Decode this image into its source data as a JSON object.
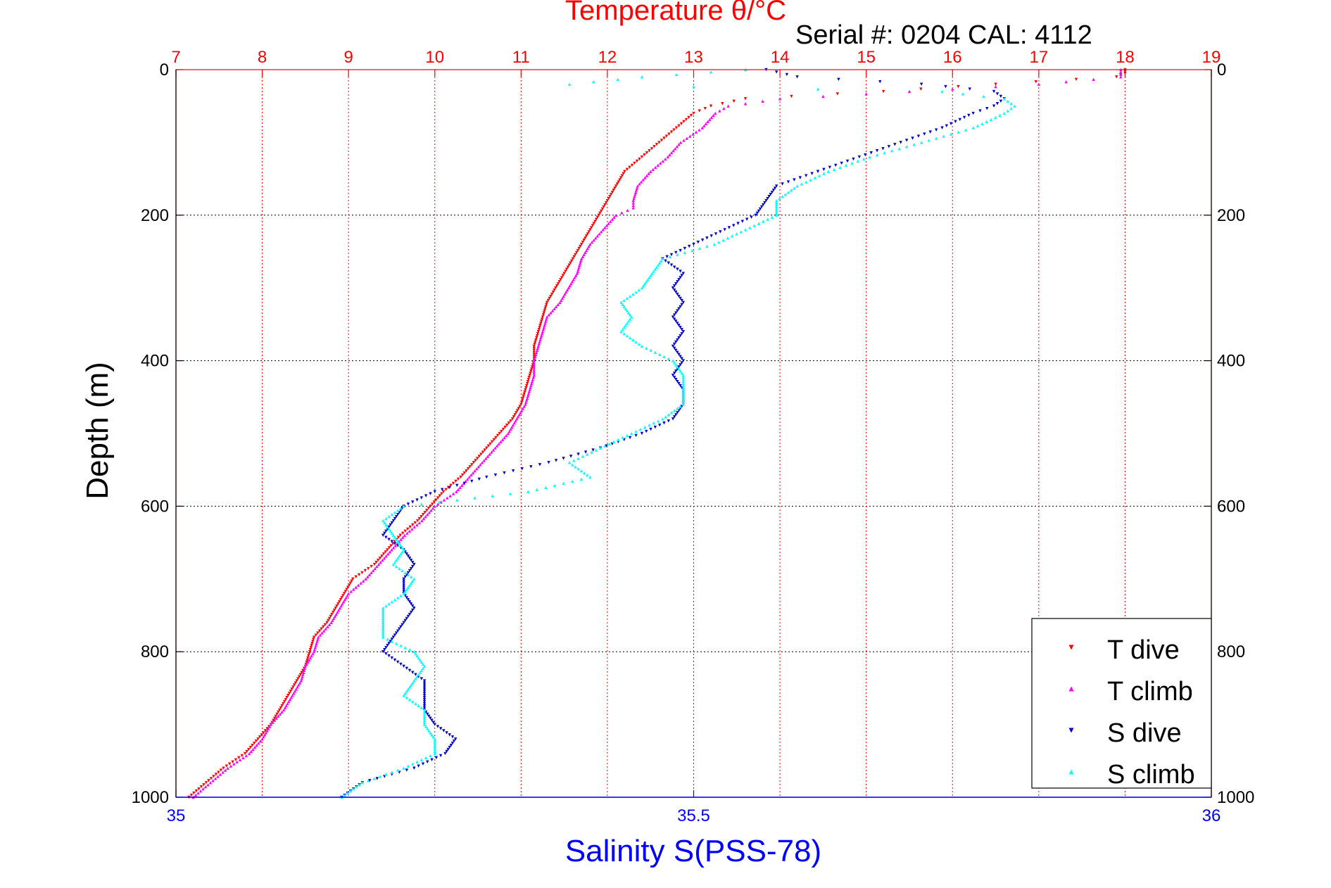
{
  "chart_data": {
    "type": "scatter",
    "title": "Temperature θ/°C",
    "subtitle": "Serial #: 0204  CAL: 4112",
    "ylabel": "Depth (m)",
    "xlabel_bottom": "Salinity S(PSS-78)",
    "xlabel_top": "Temperature θ/°C",
    "ylim": [
      0,
      1000
    ],
    "y_reversed": true,
    "xlim_top": [
      7,
      19
    ],
    "xlim_bottom": [
      35,
      36
    ],
    "yticks": [
      "0",
      "200",
      "400",
      "600",
      "800",
      "1000"
    ],
    "xticks_top": [
      "7",
      "8",
      "9",
      "10",
      "11",
      "12",
      "13",
      "14",
      "15",
      "16",
      "17",
      "18",
      "19"
    ],
    "xticks_bottom": [
      "35",
      "35.5",
      "36"
    ],
    "grid": true,
    "legend_position": "bottom-right",
    "colors": {
      "t_dive": "#ff0000",
      "t_climb": "#ff00ff",
      "s_dive": "#0000cc",
      "s_climb": "#00ffff",
      "temperature_axis": "#ff0000",
      "salinity_axis": "#0000ff"
    },
    "series": [
      {
        "name": "T dive",
        "axis": "temperature",
        "marker": "triangle-down",
        "depth": [
          0,
          5,
          10,
          20,
          30,
          40,
          50,
          60,
          80,
          100,
          120,
          140,
          160,
          180,
          200,
          220,
          240,
          260,
          280,
          300,
          320,
          340,
          360,
          380,
          400,
          420,
          440,
          460,
          480,
          500,
          520,
          540,
          560,
          580,
          600,
          620,
          640,
          660,
          680,
          700,
          720,
          740,
          760,
          780,
          800,
          820,
          840,
          860,
          880,
          900,
          920,
          940,
          960,
          980,
          1000
        ],
        "values": [
          18.0,
          18.0,
          17.9,
          16.5,
          15.2,
          13.6,
          13.2,
          13.0,
          12.8,
          12.6,
          12.4,
          12.2,
          12.1,
          12.0,
          11.9,
          11.8,
          11.7,
          11.6,
          11.5,
          11.4,
          11.3,
          11.25,
          11.2,
          11.15,
          11.15,
          11.1,
          11.05,
          11.0,
          10.9,
          10.75,
          10.6,
          10.45,
          10.3,
          10.1,
          9.95,
          9.8,
          9.6,
          9.45,
          9.3,
          9.05,
          8.95,
          8.85,
          8.75,
          8.6,
          8.55,
          8.5,
          8.4,
          8.3,
          8.2,
          8.1,
          7.95,
          7.8,
          7.55,
          7.35,
          7.15
        ]
      },
      {
        "name": "T climb",
        "axis": "temperature",
        "marker": "triangle-up",
        "depth": [
          0,
          10,
          20,
          30,
          40,
          50,
          60,
          80,
          100,
          120,
          140,
          160,
          180,
          190,
          200,
          220,
          240,
          260,
          280,
          300,
          320,
          340,
          360,
          380,
          400,
          420,
          440,
          460,
          480,
          500,
          520,
          540,
          560,
          580,
          600,
          620,
          640,
          660,
          680,
          700,
          720,
          740,
          760,
          780,
          800,
          820,
          840,
          860,
          880,
          900,
          920,
          940,
          960,
          980,
          1000
        ],
        "values": [
          17.95,
          17.95,
          17.0,
          15.5,
          14.0,
          13.4,
          13.25,
          13.1,
          12.85,
          12.7,
          12.5,
          12.35,
          12.3,
          12.3,
          12.1,
          11.95,
          11.8,
          11.7,
          11.65,
          11.55,
          11.45,
          11.3,
          11.25,
          11.2,
          11.15,
          11.15,
          11.1,
          11.05,
          10.95,
          10.85,
          10.7,
          10.55,
          10.4,
          10.25,
          10.0,
          9.85,
          9.65,
          9.5,
          9.35,
          9.2,
          9.0,
          8.9,
          8.8,
          8.65,
          8.6,
          8.5,
          8.45,
          8.35,
          8.25,
          8.1,
          8.0,
          7.85,
          7.6,
          7.4,
          7.2
        ]
      },
      {
        "name": "S dive",
        "axis": "salinity",
        "marker": "triangle-down",
        "depth": [
          0,
          10,
          20,
          30,
          40,
          50,
          60,
          80,
          100,
          120,
          140,
          160,
          180,
          200,
          220,
          240,
          260,
          280,
          300,
          320,
          340,
          360,
          380,
          400,
          420,
          440,
          460,
          480,
          500,
          520,
          540,
          560,
          580,
          600,
          620,
          640,
          660,
          680,
          700,
          720,
          740,
          760,
          780,
          800,
          820,
          840,
          860,
          880,
          900,
          920,
          940,
          960,
          980,
          1000
        ],
        "values": [
          35.57,
          35.6,
          35.72,
          35.79,
          35.8,
          35.79,
          35.77,
          35.74,
          35.7,
          35.66,
          35.62,
          35.58,
          35.57,
          35.56,
          35.53,
          35.5,
          35.47,
          35.49,
          35.48,
          35.49,
          35.48,
          35.49,
          35.48,
          35.49,
          35.48,
          35.49,
          35.49,
          35.48,
          35.45,
          35.41,
          35.36,
          35.3,
          35.25,
          35.22,
          35.21,
          35.2,
          35.22,
          35.23,
          35.22,
          35.22,
          35.23,
          35.22,
          35.21,
          35.2,
          35.22,
          35.24,
          35.24,
          35.24,
          35.25,
          35.27,
          35.26,
          35.23,
          35.18,
          35.16
        ]
      },
      {
        "name": "S climb",
        "axis": "salinity",
        "marker": "triangle-up",
        "depth": [
          0,
          10,
          20,
          30,
          40,
          50,
          60,
          80,
          100,
          120,
          140,
          160,
          180,
          200,
          220,
          240,
          260,
          280,
          300,
          320,
          340,
          360,
          380,
          400,
          420,
          440,
          460,
          480,
          500,
          520,
          540,
          560,
          580,
          600,
          620,
          640,
          660,
          680,
          700,
          720,
          740,
          760,
          780,
          800,
          820,
          840,
          860,
          880,
          900,
          920,
          940,
          960,
          980,
          1000
        ],
        "values": [
          35.55,
          35.45,
          35.38,
          35.74,
          35.8,
          35.81,
          35.8,
          35.77,
          35.72,
          35.67,
          35.63,
          35.6,
          35.58,
          35.58,
          35.55,
          35.52,
          35.47,
          35.46,
          35.45,
          35.43,
          35.44,
          35.43,
          35.45,
          35.48,
          35.49,
          35.49,
          35.49,
          35.47,
          35.44,
          35.41,
          35.38,
          35.4,
          35.34,
          35.22,
          35.2,
          35.21,
          35.22,
          35.21,
          35.23,
          35.22,
          35.2,
          35.2,
          35.2,
          35.23,
          35.24,
          35.23,
          35.22,
          35.24,
          35.24,
          35.25,
          35.25,
          35.22,
          35.18,
          35.16
        ]
      }
    ]
  }
}
